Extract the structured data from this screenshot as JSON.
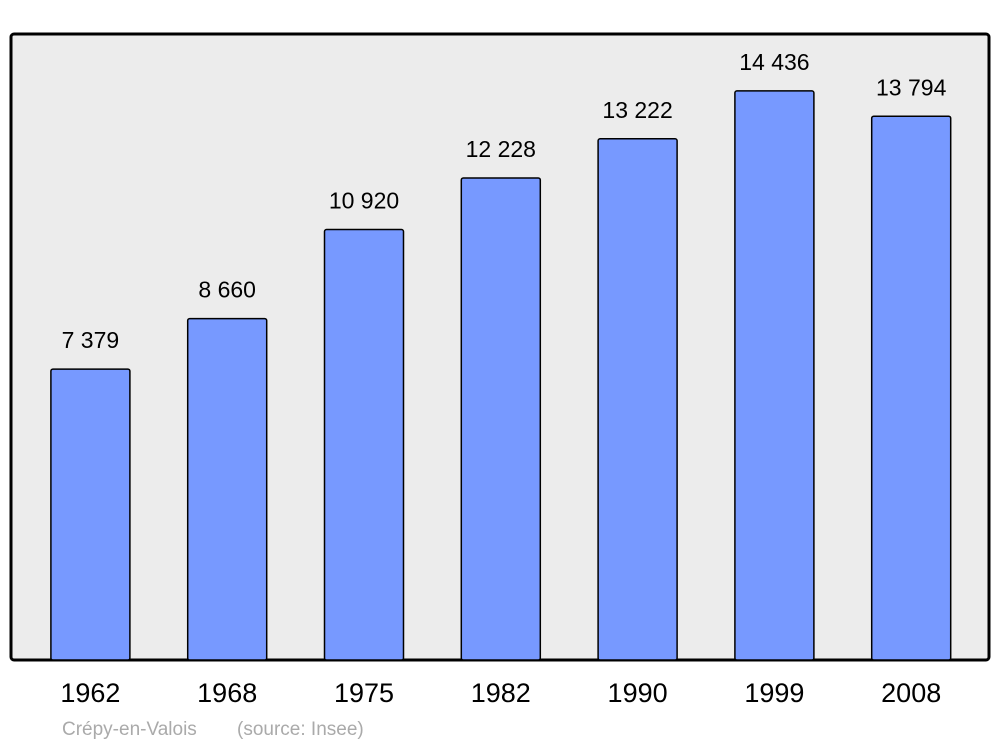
{
  "chart_data": {
    "type": "bar",
    "categories": [
      "1962",
      "1968",
      "1975",
      "1982",
      "1990",
      "1999",
      "2008"
    ],
    "values": [
      7379,
      8660,
      10920,
      12228,
      13222,
      14436,
      13794
    ],
    "value_labels": [
      "7 379",
      "8 660",
      "10 920",
      "12 228",
      "13 222",
      "14 436",
      "13 794"
    ],
    "color": "#7799ff",
    "caption": "Crépy-en-Valois",
    "source": "(source: Insee)"
  }
}
